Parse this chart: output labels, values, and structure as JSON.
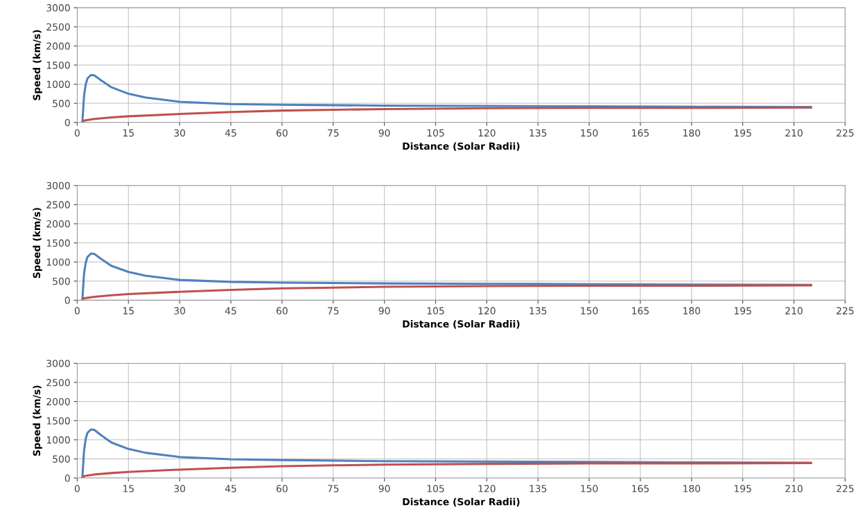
{
  "chart_data": [
    {
      "type": "line",
      "xlabel": "Distance (Solar Radii)",
      "ylabel": "Speed (km/s)",
      "xlim": [
        0,
        225
      ],
      "ylim": [
        0,
        3000
      ],
      "xticks": [
        0,
        15,
        30,
        45,
        60,
        75,
        90,
        105,
        120,
        135,
        150,
        165,
        180,
        195,
        210,
        225
      ],
      "yticks": [
        0,
        500,
        1000,
        1500,
        2000,
        2500,
        3000
      ],
      "grid": true,
      "marker": "none",
      "line_style": "solid",
      "series": [
        {
          "color": "#4f81bd",
          "x": [
            1.5,
            2,
            2.5,
            3,
            4,
            5,
            7,
            10,
            15,
            20,
            30,
            45,
            60,
            90,
            120,
            150,
            180,
            215
          ],
          "values": [
            0,
            700,
            1000,
            1150,
            1240,
            1230,
            1100,
            920,
            750,
            650,
            540,
            480,
            460,
            440,
            430,
            420,
            410,
            400
          ]
        },
        {
          "color": "#c0504d",
          "x": [
            1.5,
            2,
            5,
            10,
            15,
            30,
            45,
            60,
            75,
            90,
            120,
            150,
            180,
            215
          ],
          "values": [
            0,
            50,
            90,
            130,
            160,
            220,
            270,
            310,
            330,
            350,
            370,
            380,
            380,
            390
          ]
        }
      ]
    },
    {
      "type": "line",
      "xlabel": "Distance (Solar Radii)",
      "ylabel": "Speed (km/s)",
      "xlim": [
        0,
        225
      ],
      "ylim": [
        0,
        3000
      ],
      "xticks": [
        0,
        15,
        30,
        45,
        60,
        75,
        90,
        105,
        120,
        135,
        150,
        165,
        180,
        195,
        210,
        225
      ],
      "yticks": [
        0,
        500,
        1000,
        1500,
        2000,
        2500,
        3000
      ],
      "grid": true,
      "marker": "none",
      "line_style": "solid",
      "series": [
        {
          "color": "#4f81bd",
          "x": [
            1.5,
            2,
            2.5,
            3,
            4,
            5,
            7,
            10,
            15,
            20,
            30,
            45,
            60,
            90,
            120,
            150,
            180,
            215
          ],
          "values": [
            0,
            700,
            980,
            1130,
            1220,
            1210,
            1080,
            900,
            740,
            640,
            530,
            480,
            460,
            440,
            430,
            420,
            410,
            400
          ]
        },
        {
          "color": "#c0504d",
          "x": [
            1.5,
            2,
            5,
            10,
            15,
            30,
            45,
            60,
            75,
            90,
            120,
            150,
            180,
            215
          ],
          "values": [
            0,
            50,
            90,
            130,
            160,
            220,
            270,
            310,
            330,
            350,
            370,
            380,
            380,
            390
          ]
        }
      ]
    },
    {
      "type": "line",
      "xlabel": "Distance (Solar Radii)",
      "ylabel": "Speed (km/s)",
      "xlim": [
        0,
        225
      ],
      "ylim": [
        0,
        3000
      ],
      "xticks": [
        0,
        15,
        30,
        45,
        60,
        75,
        90,
        105,
        120,
        135,
        150,
        165,
        180,
        195,
        210,
        225
      ],
      "yticks": [
        0,
        500,
        1000,
        1500,
        2000,
        2500,
        3000
      ],
      "grid": true,
      "marker": "none",
      "line_style": "solid",
      "series": [
        {
          "color": "#4f81bd",
          "x": [
            1.5,
            2,
            2.5,
            3,
            4,
            5,
            7,
            10,
            15,
            20,
            30,
            45,
            60,
            90,
            120,
            150,
            180,
            215
          ],
          "values": [
            0,
            720,
            1030,
            1180,
            1270,
            1260,
            1120,
            930,
            760,
            660,
            550,
            490,
            470,
            440,
            430,
            420,
            410,
            400
          ]
        },
        {
          "color": "#c0504d",
          "x": [
            1.5,
            2,
            5,
            10,
            15,
            30,
            45,
            60,
            75,
            90,
            120,
            150,
            180,
            215
          ],
          "values": [
            0,
            50,
            90,
            130,
            160,
            220,
            270,
            310,
            330,
            350,
            370,
            380,
            380,
            390
          ]
        }
      ]
    }
  ]
}
